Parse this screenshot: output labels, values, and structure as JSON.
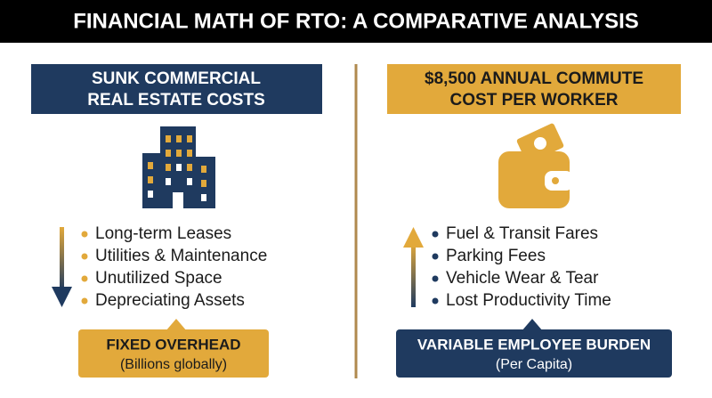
{
  "title": "FINANCIAL MATH OF RTO: A COMPARATIVE ANALYSIS",
  "left": {
    "header": [
      "SUNK COMMERCIAL",
      "REAL ESTATE COSTS"
    ],
    "items": [
      "Long-term Leases",
      "Utilities & Maintenance",
      "Unutilized Space",
      "Depreciating Assets"
    ],
    "callout": {
      "title": "FIXED OVERHEAD",
      "subtitle": "(Billions globally)"
    }
  },
  "right": {
    "header": [
      "$8,500 ANNUAL COMMUTE",
      "COST PER WORKER"
    ],
    "items": [
      "Fuel & Transit Fares",
      "Parking Fees",
      "Vehicle Wear & Tear",
      "Lost Productivity Time"
    ],
    "callout": {
      "title": "VARIABLE EMPLOYEE BURDEN",
      "subtitle": "(Per Capita)"
    }
  }
}
